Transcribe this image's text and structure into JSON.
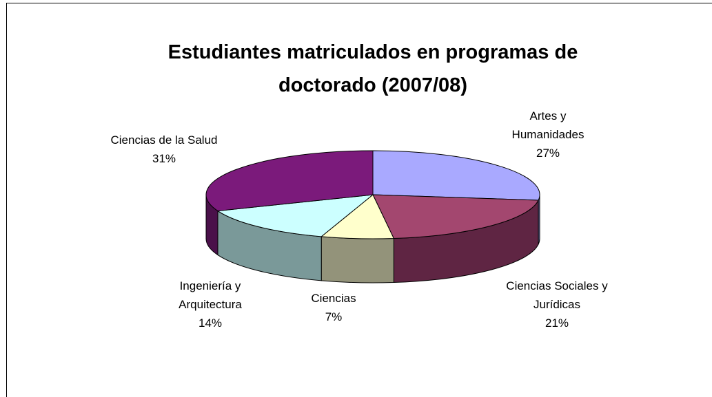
{
  "chart_data": {
    "type": "pie3d",
    "title": "Estudiantes matriculados en programas de doctorado (2007/08)",
    "categories": [
      "Artes y Humanidades",
      "Ciencias Sociales y Jurídicas",
      "Ciencias",
      "Ingeniería y Arquitectura",
      "Ciencias de la Salud"
    ],
    "values": [
      27,
      21,
      7,
      14,
      31
    ],
    "value_labels": [
      "27%",
      "21%",
      "7%",
      "14%",
      "31%"
    ],
    "colors": [
      "#a9a9ff",
      "#a3476f",
      "#ffffcc",
      "#ccffff",
      "#7b1a7b"
    ],
    "side_colors": [
      "#7a7ab8",
      "#5f2543",
      "#93937a",
      "#7a9999",
      "#4a104a"
    ]
  }
}
